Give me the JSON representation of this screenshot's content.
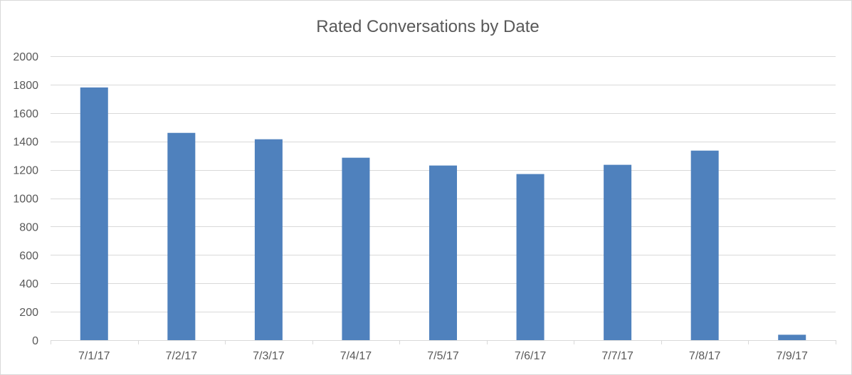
{
  "chart_data": {
    "type": "bar",
    "title": "Rated Conversations by Date",
    "categories": [
      "7/1/17",
      "7/2/17",
      "7/3/17",
      "7/4/17",
      "7/5/17",
      "7/6/17",
      "7/7/17",
      "7/8/17",
      "7/9/17"
    ],
    "values": [
      1780,
      1460,
      1415,
      1285,
      1230,
      1170,
      1235,
      1335,
      38
    ],
    "ylim": [
      0,
      2000
    ],
    "yticks": [
      0,
      200,
      400,
      600,
      800,
      1000,
      1200,
      1400,
      1600,
      1800,
      2000
    ],
    "ytick_labels": [
      "0",
      "200",
      "400",
      "600",
      "800",
      "1000",
      "1200",
      "1400",
      "1600",
      "1800",
      "2000"
    ],
    "grid": true,
    "legend": "none",
    "bar_color": "#4f81bd",
    "grid_color": "#d9d9d9"
  }
}
